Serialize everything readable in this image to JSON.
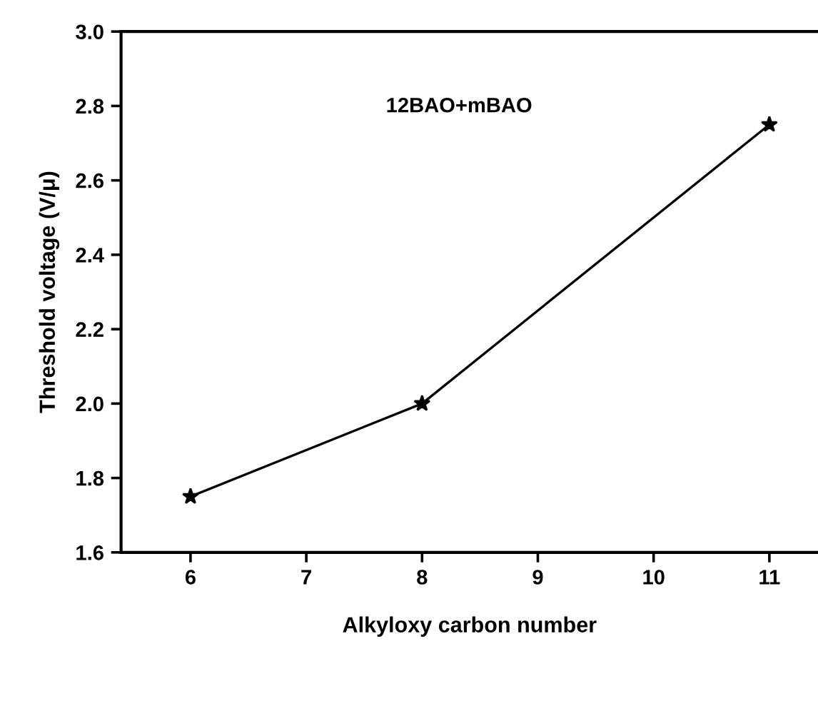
{
  "chart_data": {
    "type": "line",
    "xlabel": "Alkyloxy carbon number",
    "ylabel": "Threshold voltage (V/μ)",
    "annotations": [
      "12BAO+mBAO"
    ],
    "x": [
      6,
      8,
      11
    ],
    "series": [
      {
        "color": "#000000",
        "values": [
          1.75,
          2.0,
          2.75
        ]
      }
    ],
    "marker": "star",
    "line_style": "solid",
    "xlim": [
      5.4,
      11.42
    ],
    "xticks": [
      6,
      7,
      8,
      9,
      10,
      11
    ],
    "ylim": [
      1.6,
      3.0
    ],
    "yticks": [
      1.6,
      1.8,
      {
        "value": 2,
        "label": "2.0"
      },
      2.2,
      2.4,
      2.6,
      2.8,
      {
        "value": 3,
        "label": "3.0"
      }
    ],
    "grid": false,
    "legend": false
  }
}
